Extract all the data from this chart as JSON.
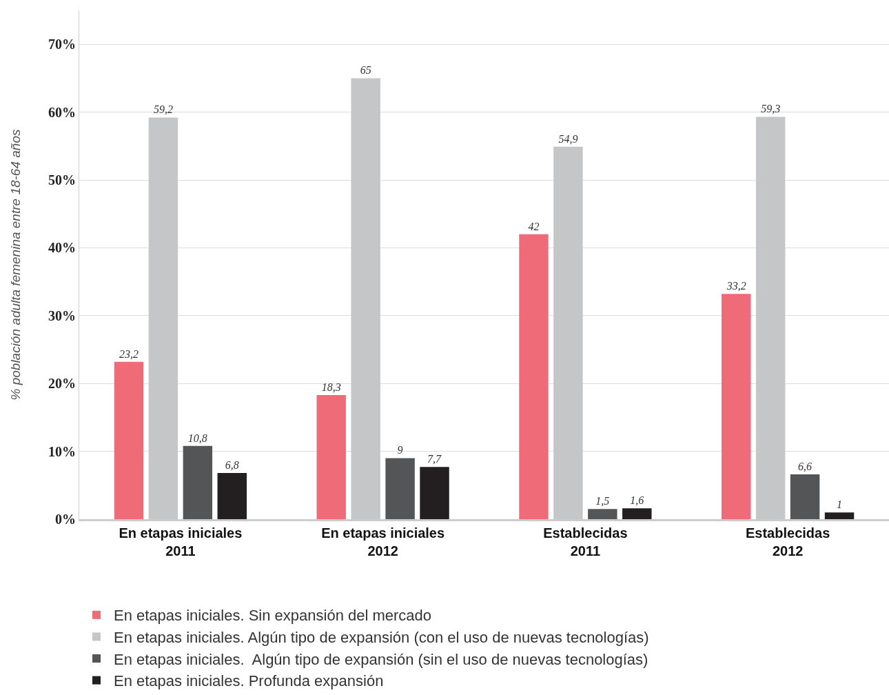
{
  "chart_data": {
    "type": "bar",
    "ylabel": "% población adulta femenina entre 18-64 años",
    "categories": [
      "En etapas iniciales\n2011",
      "En etapas iniciales\n2012",
      "Establecidas\n2011",
      "Establecidas\n2012"
    ],
    "series": [
      {
        "name": "En etapas iniciales. Sin expansión del mercado",
        "color": "#f06b78",
        "values": [
          23.2,
          18.3,
          42,
          33.2
        ],
        "value_labels": [
          "23,2",
          "18,3",
          "42",
          "33,2"
        ]
      },
      {
        "name": "En etapas iniciales. Algún tipo de expansión (con el uso de nuevas tecnologías)",
        "color": "#c5c6c8",
        "values": [
          59.2,
          65,
          54.9,
          59.3
        ],
        "value_labels": [
          "59,2",
          "65",
          "54,9",
          "59,3"
        ]
      },
      {
        "name": "En etapas iniciales.  Algún tipo de expansión (sin el uso de nuevas tecnologías)",
        "color": "#545557",
        "values": [
          10.8,
          9,
          1.5,
          6.6
        ],
        "value_labels": [
          "10,8",
          "9",
          "1,5",
          "6,6"
        ]
      },
      {
        "name": "En etapas iniciales. Profunda expansión",
        "color": "#231f20",
        "values": [
          6.8,
          7.7,
          1.6,
          1
        ],
        "value_labels": [
          "6,8",
          "7,7",
          "1,6",
          "1"
        ]
      }
    ],
    "ylim": [
      0,
      75
    ],
    "yticks": [
      {
        "value": 0,
        "label": "0%"
      },
      {
        "value": 10,
        "label": "10%"
      },
      {
        "value": 20,
        "label": "20%"
      },
      {
        "value": 30,
        "label": "30%"
      },
      {
        "value": 40,
        "label": "40%"
      },
      {
        "value": 50,
        "label": "50%"
      },
      {
        "value": 60,
        "label": "60%"
      },
      {
        "value": 70,
        "label": "70%"
      }
    ],
    "grid": "y",
    "legend": "bottom"
  }
}
